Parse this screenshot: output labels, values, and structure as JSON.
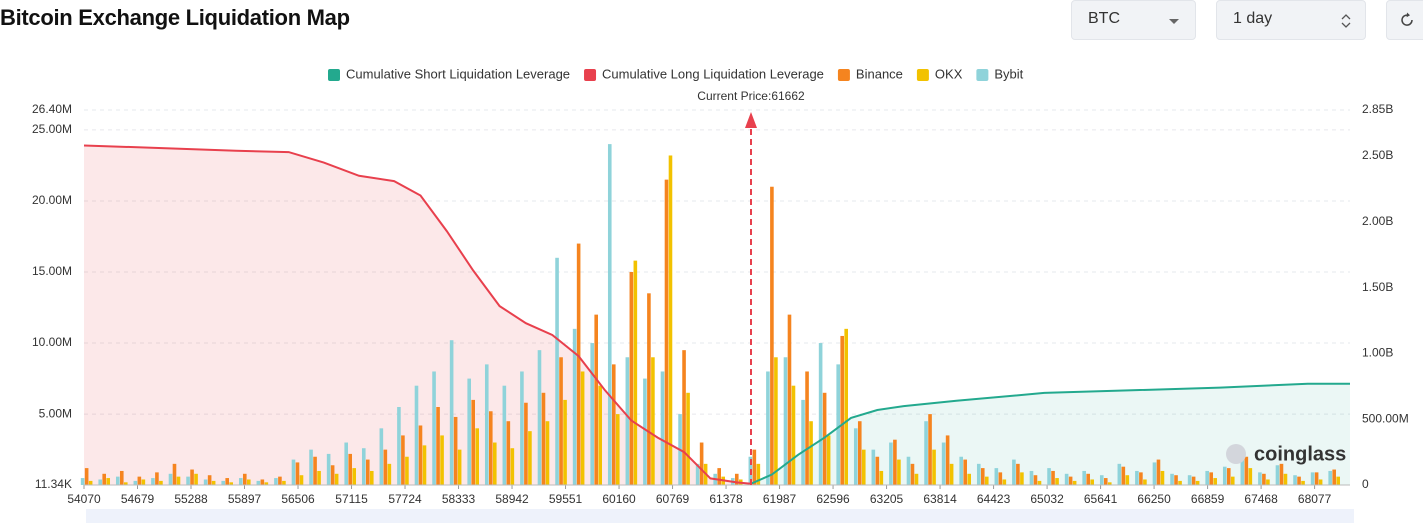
{
  "controls": {
    "symbol": "BTC",
    "range": "1 day"
  },
  "chart_data": {
    "type": "bar",
    "title": "Bitcoin Exchange Liquidation Map",
    "annotation": {
      "label": "Current Price:61662",
      "value": 61662
    },
    "watermark": "coinglass",
    "xlim": [
      54070,
      68480
    ],
    "xticks": [
      54070,
      54679,
      55288,
      55897,
      56506,
      57115,
      57724,
      58333,
      58942,
      59551,
      60160,
      60769,
      61378,
      61987,
      62596,
      63205,
      63814,
      64423,
      65032,
      65641,
      66250,
      66859,
      67468,
      68077
    ],
    "ylim": [
      11340,
      26400000
    ],
    "yticks": [
      {
        "value": 11340,
        "label": "11.34K"
      },
      {
        "value": 5000000,
        "label": "5.00M"
      },
      {
        "value": 10000000,
        "label": "10.00M"
      },
      {
        "value": 15000000,
        "label": "15.00M"
      },
      {
        "value": 20000000,
        "label": "20.00M"
      },
      {
        "value": 25000000,
        "label": "25.00M"
      },
      {
        "value": 26400000,
        "label": "26.40M"
      }
    ],
    "y2lim": [
      0,
      2850000000
    ],
    "y2ticks": [
      0,
      {
        "value": 500000000,
        "label": "500.00M"
      },
      {
        "value": 1000000000,
        "label": "1.00B"
      },
      {
        "value": 1500000000,
        "label": "1.50B"
      },
      {
        "value": 2000000000,
        "label": "2.00B"
      },
      {
        "value": 2500000000,
        "label": "2.50B"
      },
      {
        "value": 2850000000,
        "label": "2.85B"
      }
    ],
    "grid": true,
    "series": [
      {
        "name": "Cumulative Short Liquidation Leverage",
        "type": "area",
        "axis": "y2",
        "color": "#23a98e",
        "fill": "rgba(35,169,142,0.09)",
        "x": [
          61662,
          61900,
          62200,
          62500,
          62800,
          63100,
          63400,
          64000,
          65000,
          66000,
          67000,
          68000,
          68480
        ],
        "values": [
          10000000.0,
          80000000.0,
          230000000.0,
          360000000.0,
          510000000.0,
          570000000.0,
          600000000.0,
          640000000.0,
          700000000.0,
          720000000.0,
          740000000.0,
          770000000.0,
          770000000.0
        ]
      },
      {
        "name": "Cumulative Long Liquidation Leverage",
        "type": "area",
        "axis": "y2",
        "color": "#e8404d",
        "fill": "rgba(232,64,77,0.12)",
        "x": [
          54070,
          55000,
          55800,
          56400,
          56800,
          57200,
          57600,
          57900,
          58200,
          58500,
          58800,
          59100,
          59400,
          59700,
          60000,
          60300,
          60600,
          60900,
          61200,
          61500,
          61662
        ],
        "values": [
          2580000000.0,
          2560000000.0,
          2540000000.0,
          2530000000.0,
          2450000000.0,
          2350000000.0,
          2310000000.0,
          2200000000.0,
          1930000000.0,
          1630000000.0,
          1360000000.0,
          1230000000.0,
          1140000000.0,
          980000000.0,
          720000000.0,
          490000000.0,
          360000000.0,
          250000000.0,
          50000000.0,
          20000000.0,
          10000000.0
        ]
      },
      {
        "name": "Binance",
        "type": "bar",
        "color": "#f5841f",
        "offset": 0,
        "x": [
          54100,
          54300,
          54500,
          54700,
          54900,
          55100,
          55300,
          55500,
          55700,
          55900,
          56100,
          56300,
          56500,
          56700,
          56900,
          57100,
          57300,
          57500,
          57700,
          57900,
          58100,
          58300,
          58500,
          58700,
          58900,
          59100,
          59300,
          59500,
          59700,
          59900,
          60100,
          60300,
          60500,
          60700,
          60900,
          61100,
          61300,
          61500,
          61700,
          61900,
          62100,
          62300,
          62500,
          62700,
          62900,
          63100,
          63300,
          63500,
          63700,
          63900,
          64100,
          64300,
          64500,
          64700,
          64900,
          65100,
          65300,
          65500,
          65700,
          65900,
          66100,
          66300,
          66500,
          66700,
          66900,
          67100,
          67300,
          67500,
          67700,
          67900,
          68100,
          68300
        ],
        "values": [
          1200000.0,
          800000.0,
          1000000.0,
          600000.0,
          900000.0,
          1500000.0,
          1100000.0,
          700000.0,
          500000.0,
          800000.0,
          400000.0,
          600000.0,
          1600000.0,
          2000000.0,
          1400000.0,
          2200000.0,
          1800000.0,
          2500000.0,
          3500000.0,
          4200000.0,
          5500000.0,
          4800000.0,
          6000000.0,
          5200000.0,
          4500000.0,
          5800000.0,
          6500000.0,
          9000000.0,
          17000000.0,
          12000000.0,
          8500000.0,
          15000000.0,
          13500000.0,
          21500000.0,
          9500000.0,
          3000000.0,
          1200000.0,
          800000.0,
          2500000.0,
          21000000.0,
          12000000.0,
          8000000.0,
          6500000.0,
          10500000.0,
          4500000.0,
          2000000.0,
          3200000.0,
          1500000.0,
          5000000.0,
          3500000.0,
          1800000.0,
          1200000.0,
          900000.0,
          1500000.0,
          700000.0,
          1000000.0,
          600000.0,
          800000.0,
          500000.0,
          1300000.0,
          900000.0,
          1800000.0,
          700000.0,
          600000.0,
          900000.0,
          1200000.0,
          2000000.0,
          800000.0,
          1500000.0,
          600000.0,
          900000.0,
          1100000.0
        ]
      },
      {
        "name": "OKX",
        "type": "bar",
        "color": "#f2c200",
        "offset": 4,
        "x": [
          54100,
          54300,
          54500,
          54700,
          54900,
          55100,
          55300,
          55500,
          55700,
          55900,
          56100,
          56300,
          56500,
          56700,
          56900,
          57100,
          57300,
          57500,
          57700,
          57900,
          58100,
          58300,
          58500,
          58700,
          58900,
          59100,
          59300,
          59500,
          59700,
          59900,
          60100,
          60300,
          60500,
          60700,
          60900,
          61100,
          61300,
          61500,
          61700,
          61900,
          62100,
          62300,
          62500,
          62700,
          62900,
          63100,
          63300,
          63500,
          63700,
          63900,
          64100,
          64300,
          64500,
          64700,
          64900,
          65100,
          65300,
          65500,
          65700,
          65900,
          66100,
          66300,
          66500,
          66700,
          66900,
          67100,
          67300,
          67500,
          67700,
          67900,
          68100,
          68300
        ],
        "values": [
          300000.0,
          500000.0,
          200000.0,
          400000.0,
          300000.0,
          600000.0,
          800000.0,
          300000.0,
          200000.0,
          400000.0,
          200000.0,
          300000.0,
          700000.0,
          1000000.0,
          800000.0,
          1200000.0,
          1000000.0,
          1500000.0,
          2000000.0,
          2800000.0,
          3500000.0,
          2500000.0,
          4000000.0,
          3000000.0,
          2600000.0,
          3800000.0,
          4500000.0,
          6000000.0,
          8000000.0,
          7000000.0,
          5000000.0,
          15800000.0,
          9000000.0,
          23200000.0,
          6500000.0,
          1500000.0,
          600000.0,
          400000.0,
          1500000.0,
          9000000.0,
          7000000.0,
          4500000.0,
          3500000.0,
          11000000.0,
          2500000.0,
          1000000.0,
          1800000.0,
          800000.0,
          2500000.0,
          1500000.0,
          800000.0,
          600000.0,
          400000.0,
          900000.0,
          300000.0,
          500000.0,
          300000.0,
          400000.0,
          200000.0,
          700000.0,
          400000.0,
          1000000.0,
          300000.0,
          300000.0,
          500000.0,
          600000.0,
          1200000.0,
          400000.0,
          800000.0,
          300000.0,
          400000.0,
          600000.0
        ]
      },
      {
        "name": "Bybit",
        "type": "bar",
        "color": "#8fd3da",
        "offset": -4,
        "x": [
          54100,
          54300,
          54500,
          54700,
          54900,
          55100,
          55300,
          55500,
          55700,
          55900,
          56100,
          56300,
          56500,
          56700,
          56900,
          57100,
          57300,
          57500,
          57700,
          57900,
          58100,
          58300,
          58500,
          58700,
          58900,
          59100,
          59300,
          59500,
          59700,
          59900,
          60100,
          60300,
          60500,
          60700,
          60900,
          61100,
          61300,
          61500,
          61700,
          61900,
          62100,
          62300,
          62500,
          62700,
          62900,
          63100,
          63300,
          63500,
          63700,
          63900,
          64100,
          64300,
          64500,
          64700,
          64900,
          65100,
          65300,
          65500,
          65700,
          65900,
          66100,
          66300,
          66500,
          66700,
          66900,
          67100,
          67300,
          67500,
          67700,
          67900,
          68100,
          68300
        ],
        "values": [
          500000.0,
          400000.0,
          600000.0,
          300000.0,
          500000.0,
          800000.0,
          600000.0,
          400000.0,
          300000.0,
          500000.0,
          300000.0,
          500000.0,
          1800000.0,
          2500000.0,
          2200000.0,
          3000000.0,
          2600000.0,
          4000000.0,
          5500000.0,
          7000000.0,
          8000000.0,
          10200000.0,
          7500000.0,
          8500000.0,
          7000000.0,
          8000000.0,
          9500000.0,
          16000000.0,
          11000000.0,
          10000000.0,
          24000000.0,
          9000000.0,
          7500000.0,
          8000000.0,
          5000000.0,
          1500000.0,
          800000.0,
          500000.0,
          2000000.0,
          8000000.0,
          9000000.0,
          6000000.0,
          10000000.0,
          8500000.0,
          4000000.0,
          2500000.0,
          3000000.0,
          2000000.0,
          4500000.0,
          3000000.0,
          2000000.0,
          1500000.0,
          1200000.0,
          1800000.0,
          1000000.0,
          1200000.0,
          800000.0,
          1000000.0,
          700000.0,
          1500000.0,
          1000000.0,
          1600000.0,
          800000.0,
          700000.0,
          1000000.0,
          1300000.0,
          2200000.0,
          900000.0,
          1400000.0,
          700000.0,
          900000.0,
          1000000.0
        ]
      }
    ]
  }
}
